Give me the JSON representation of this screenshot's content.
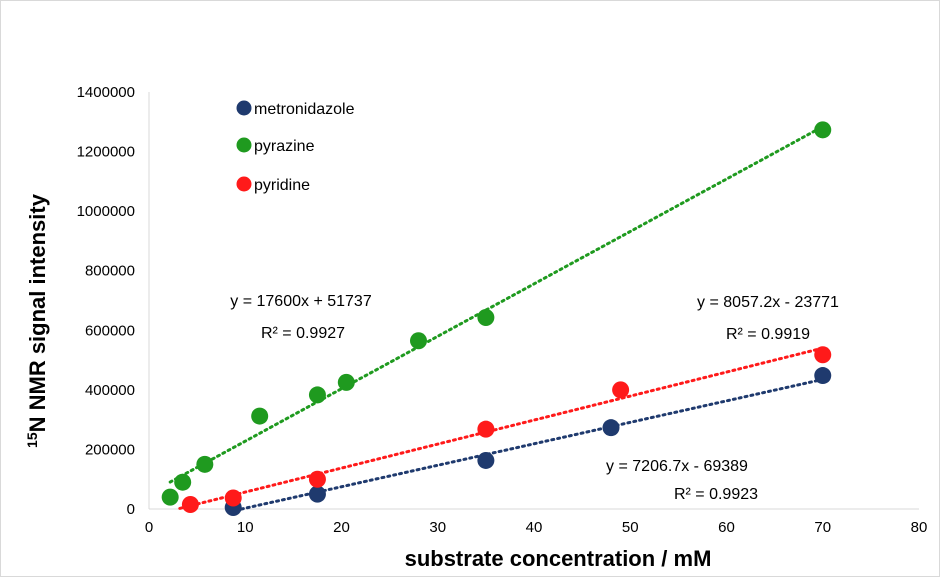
{
  "chart_data": {
    "type": "scatter",
    "title": "",
    "xlabel": "substrate concentration / mM",
    "ylabel": {
      "sup": "15",
      "text": "N NMR signal intensity"
    },
    "xlim": [
      0,
      80
    ],
    "ylim": [
      0,
      1400000
    ],
    "x_ticks": [
      "0",
      "10",
      "20",
      "30",
      "40",
      "50",
      "60",
      "70",
      "80"
    ],
    "y_ticks": [
      "0",
      "200000",
      "400000",
      "600000",
      "800000",
      "1000000",
      "1200000",
      "1400000"
    ],
    "grid": false,
    "legend_position": "top-left",
    "series": [
      {
        "name": "metronidazole",
        "color": "#1f3a6e",
        "x": [
          8.75,
          17.5,
          35,
          48,
          70
        ],
        "y": [
          5000,
          50000,
          163000,
          273000,
          448000
        ],
        "trendline": {
          "slope": 7206.7,
          "intercept": -69389,
          "x_range": [
            9.6,
            70
          ]
        },
        "equation": "y = 7206.7x - 69389",
        "r2": "R² = 0.9923"
      },
      {
        "name": "pyrazine",
        "color": "#1f9a1f",
        "x": [
          2.2,
          3.5,
          5.8,
          11.5,
          17.5,
          20.5,
          28,
          35,
          70
        ],
        "y": [
          40000,
          90000,
          150000,
          312000,
          383000,
          425000,
          565000,
          643000,
          1273000
        ],
        "trendline": {
          "slope": 17600,
          "intercept": 51737,
          "x_range": [
            2.2,
            70
          ]
        },
        "equation": "y = 17600x + 51737",
        "r2": "R² = 0.9927"
      },
      {
        "name": "pyridine",
        "color": "#ff1a1a",
        "x": [
          4.3,
          8.75,
          17.5,
          35,
          49,
          70
        ],
        "y": [
          15000,
          37000,
          100000,
          268000,
          400000,
          518000
        ],
        "trendline": {
          "slope": 8057.2,
          "intercept": -23771,
          "x_range": [
            3.2,
            70
          ]
        },
        "equation": "y = 8057.2x - 23771",
        "r2": "R² = 0.9919"
      }
    ]
  }
}
